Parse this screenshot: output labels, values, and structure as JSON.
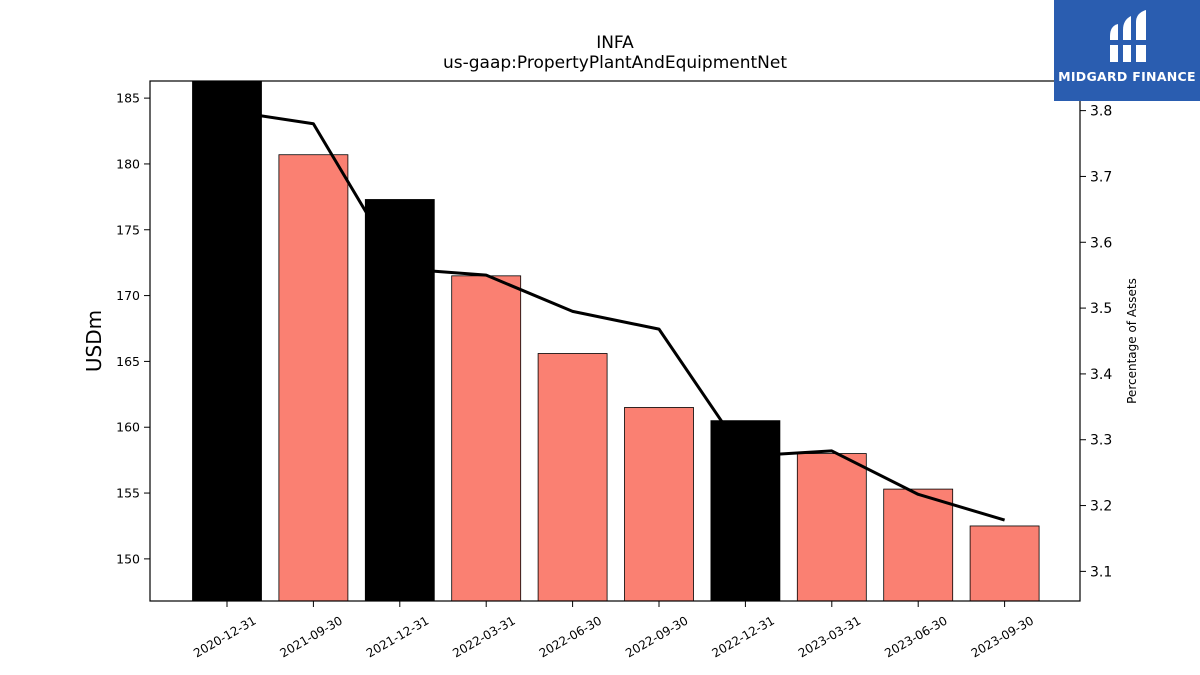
{
  "logo": {
    "text": "MIDGARD FINANCE",
    "icon": "midgard-logo-icon",
    "background": "#2a5db0"
  },
  "chart_data": {
    "type": "bar",
    "title": "INFA",
    "subtitle": "us-gaap:PropertyPlantAndEquipmentNet",
    "ylabel": "USDm",
    "y2label": "Percentage of Assets",
    "ylim": [
      146.8,
      186.3
    ],
    "y2lim": [
      3.055,
      3.845
    ],
    "yticks": [
      150,
      155,
      160,
      165,
      170,
      175,
      180,
      185
    ],
    "y2ticks": [
      3.1,
      3.2,
      3.3,
      3.4,
      3.5,
      3.6,
      3.7,
      3.8
    ],
    "categories": [
      "2020-12-31",
      "2021-09-30",
      "2021-12-31",
      "2022-03-31",
      "2022-06-30",
      "2022-09-30",
      "2022-12-31",
      "2023-03-31",
      "2023-06-30",
      "2023-09-30"
    ],
    "series": [
      {
        "values": [
          186.3,
          180.7,
          177.3,
          171.5,
          165.6,
          161.5,
          160.5,
          158.0,
          155.3,
          152.5
        ],
        "colors": [
          "#000000",
          "#fa8072",
          "#000000",
          "#fa8072",
          "#fa8072",
          "#fa8072",
          "#000000",
          "#fa8072",
          "#fa8072",
          "#fa8072"
        ]
      },
      {
        "axis": "right",
        "type": "line",
        "color": "#000000",
        "values": [
          3.8,
          3.78,
          3.56,
          3.55,
          3.495,
          3.468,
          3.275,
          3.283,
          3.217,
          3.178
        ]
      }
    ],
    "grid": false,
    "legend": "none"
  }
}
